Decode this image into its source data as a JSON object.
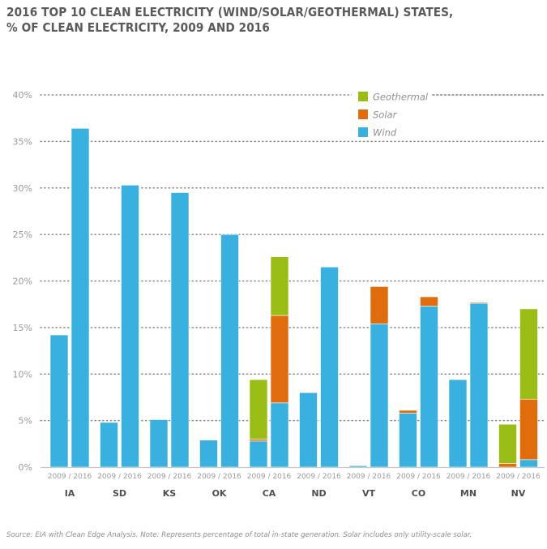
{
  "title_lines": [
    "2016 TOP 10 CLEAN ELECTRICITY (WIND/SOLAR/GEOTHERMAL) STATES,",
    "% OF CLEAN ELECTRICITY, 2009 AND 2016"
  ],
  "source_note": "Source: EIA with Clean Edge Analysis. Note: Represents percentage of total in-state generation. Solar includes only utility-scale solar.",
  "colors": {
    "Wind": "#38b1e1",
    "Solar": "#e06c0c",
    "Geothermal": "#99bd14",
    "grid": "#8a8a8c",
    "axis": "#c8c8ca"
  },
  "chart_data": {
    "type": "bar",
    "subtype": "grouped-stacked",
    "title": "2016 TOP 10 CLEAN ELECTRICITY (WIND/SOLAR/GEOTHERMAL) STATES, % OF CLEAN ELECTRICITY, 2009 AND 2016",
    "xlabel": "",
    "ylabel": "",
    "ylim": [
      0,
      40
    ],
    "yticks": [
      0,
      5,
      10,
      15,
      20,
      25,
      30,
      35,
      40
    ],
    "ytick_labels": [
      "0%",
      "5%",
      "10%",
      "15%",
      "20%",
      "25%",
      "30%",
      "35%",
      "40%"
    ],
    "grid": "horizontal-dotted",
    "legend_position": "top-right",
    "legend": [
      "Geothermal",
      "Solar",
      "Wind"
    ],
    "stack_order": [
      "Wind",
      "Solar",
      "Geothermal"
    ],
    "group_sublabel": "2009 / 2016",
    "years": [
      "2009",
      "2016"
    ],
    "categories": [
      "IA",
      "SD",
      "KS",
      "OK",
      "CA",
      "ND",
      "VT",
      "CO",
      "MN",
      "NV"
    ],
    "series": [
      {
        "name": "Wind",
        "values_2009": [
          14.2,
          4.8,
          5.1,
          2.9,
          2.8,
          8.0,
          0.15,
          5.8,
          9.4,
          0.0
        ],
        "values_2016": [
          36.4,
          30.3,
          29.5,
          25.0,
          6.9,
          21.5,
          15.4,
          17.3,
          17.6,
          0.8
        ]
      },
      {
        "name": "Solar",
        "values_2009": [
          0,
          0,
          0,
          0,
          0.2,
          0,
          0,
          0.3,
          0,
          0.4
        ],
        "values_2016": [
          0,
          0,
          0,
          0,
          9.4,
          0,
          4.0,
          1.0,
          0.1,
          6.5
        ]
      },
      {
        "name": "Geothermal",
        "values_2009": [
          0,
          0,
          0,
          0,
          6.4,
          0,
          0,
          0,
          0,
          4.2
        ],
        "values_2016": [
          0,
          0,
          0,
          0,
          6.3,
          0,
          0,
          0,
          0,
          9.7
        ]
      }
    ]
  }
}
